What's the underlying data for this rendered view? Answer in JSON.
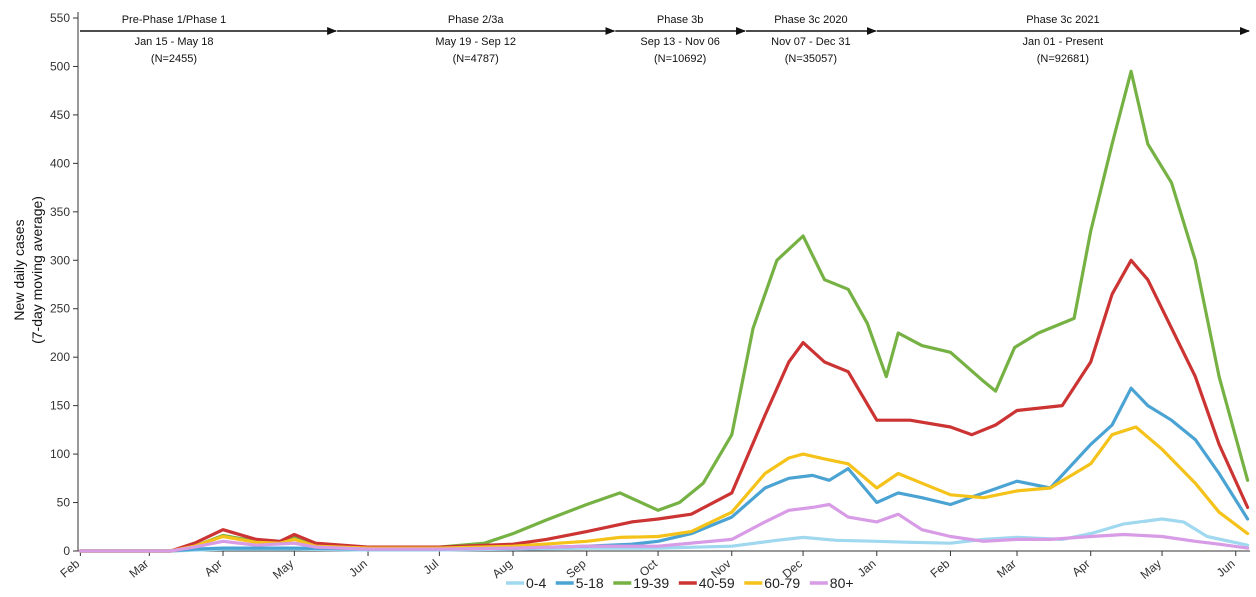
{
  "chart_data": {
    "type": "line",
    "ylabel": [
      "New daily cases",
      "(7-day moving average)"
    ],
    "ylim": [
      0,
      550
    ],
    "y_ticks": [
      0,
      50,
      100,
      150,
      200,
      250,
      300,
      350,
      400,
      450,
      500,
      550
    ],
    "x_ticks": [
      "Feb",
      "Mar",
      "Apr",
      "May",
      "Jun",
      "Jul",
      "Aug",
      "Sep",
      "Oct",
      "Nov",
      "Dec",
      "Jan",
      "Feb",
      "Mar",
      "Apr",
      "May",
      "Jun"
    ],
    "x_tick_dates": [
      "2020-02-01",
      "2020-03-01",
      "2020-04-01",
      "2020-05-01",
      "2020-06-01",
      "2020-07-01",
      "2020-08-01",
      "2020-09-01",
      "2020-10-01",
      "2020-11-01",
      "2020-12-01",
      "2021-01-01",
      "2021-02-01",
      "2021-03-01",
      "2021-04-01",
      "2021-05-01",
      "2021-06-01"
    ],
    "grid": false,
    "legend_position": "bottom",
    "phases": [
      {
        "title": "Pre-Phase 1/Phase 1",
        "dates": "Jan 15 - May 18",
        "n": "(N=2455)",
        "start": "2020-01-31",
        "end": "2020-05-19"
      },
      {
        "title": "Phase 2/3a",
        "dates": "May 19 - Sep 12",
        "n": "(N=4787)",
        "start": "2020-05-19",
        "end": "2020-09-13"
      },
      {
        "title": "Phase 3b",
        "dates": "Sep 13 - Nov 06",
        "n": "(N=10692)",
        "start": "2020-09-13",
        "end": "2020-11-07"
      },
      {
        "title": "Phase 3c 2020",
        "dates": "Nov 07 - Dec 31",
        "n": "(N=35057)",
        "start": "2020-11-07",
        "end": "2021-01-01"
      },
      {
        "title": "Phase 3c 2021",
        "dates": "Jan 01 - Present",
        "n": "(N=92681)",
        "start": "2021-01-01",
        "end": "2021-06-07"
      }
    ],
    "series": [
      {
        "name": "0-4",
        "color": "#9fd8ef",
        "points": [
          [
            "2020-02-01",
            0
          ],
          [
            "2020-03-10",
            0
          ],
          [
            "2020-04-01",
            2
          ],
          [
            "2020-05-01",
            2
          ],
          [
            "2020-06-01",
            1
          ],
          [
            "2020-07-01",
            1
          ],
          [
            "2020-08-01",
            2
          ],
          [
            "2020-09-01",
            3
          ],
          [
            "2020-10-01",
            3
          ],
          [
            "2020-11-01",
            5
          ],
          [
            "2020-11-20",
            11
          ],
          [
            "2020-12-01",
            14
          ],
          [
            "2020-12-15",
            11
          ],
          [
            "2021-01-01",
            10
          ],
          [
            "2021-01-15",
            9
          ],
          [
            "2021-02-01",
            8
          ],
          [
            "2021-02-15",
            12
          ],
          [
            "2021-03-01",
            14
          ],
          [
            "2021-03-20",
            12
          ],
          [
            "2021-04-01",
            18
          ],
          [
            "2021-04-15",
            28
          ],
          [
            "2021-05-01",
            33
          ],
          [
            "2021-05-10",
            30
          ],
          [
            "2021-05-20",
            15
          ],
          [
            "2021-06-06",
            6
          ]
        ]
      },
      {
        "name": "5-18",
        "color": "#4aa3d3",
        "points": [
          [
            "2020-02-01",
            0
          ],
          [
            "2020-03-10",
            0
          ],
          [
            "2020-03-20",
            2
          ],
          [
            "2020-04-01",
            3
          ],
          [
            "2020-05-01",
            3
          ],
          [
            "2020-06-01",
            2
          ],
          [
            "2020-07-01",
            2
          ],
          [
            "2020-08-01",
            3
          ],
          [
            "2020-09-01",
            5
          ],
          [
            "2020-09-20",
            7
          ],
          [
            "2020-10-01",
            10
          ],
          [
            "2020-10-15",
            18
          ],
          [
            "2020-11-01",
            35
          ],
          [
            "2020-11-15",
            65
          ],
          [
            "2020-11-25",
            75
          ],
          [
            "2020-12-05",
            78
          ],
          [
            "2020-12-12",
            73
          ],
          [
            "2020-12-20",
            85
          ],
          [
            "2021-01-01",
            50
          ],
          [
            "2021-01-10",
            60
          ],
          [
            "2021-01-20",
            55
          ],
          [
            "2021-02-01",
            48
          ],
          [
            "2021-02-15",
            60
          ],
          [
            "2021-03-01",
            72
          ],
          [
            "2021-03-15",
            65
          ],
          [
            "2021-04-01",
            110
          ],
          [
            "2021-04-10",
            130
          ],
          [
            "2021-04-18",
            168
          ],
          [
            "2021-04-25",
            150
          ],
          [
            "2021-05-05",
            135
          ],
          [
            "2021-05-15",
            115
          ],
          [
            "2021-05-25",
            80
          ],
          [
            "2021-06-06",
            33
          ]
        ]
      },
      {
        "name": "19-39",
        "color": "#76b143",
        "points": [
          [
            "2020-02-01",
            0
          ],
          [
            "2020-03-10",
            0
          ],
          [
            "2020-03-20",
            5
          ],
          [
            "2020-04-01",
            16
          ],
          [
            "2020-04-15",
            10
          ],
          [
            "2020-04-25",
            9
          ],
          [
            "2020-05-01",
            14
          ],
          [
            "2020-05-10",
            5
          ],
          [
            "2020-06-01",
            3
          ],
          [
            "2020-07-01",
            4
          ],
          [
            "2020-07-20",
            8
          ],
          [
            "2020-08-01",
            18
          ],
          [
            "2020-08-15",
            32
          ],
          [
            "2020-09-01",
            48
          ],
          [
            "2020-09-15",
            60
          ],
          [
            "2020-10-01",
            42
          ],
          [
            "2020-10-10",
            50
          ],
          [
            "2020-10-20",
            70
          ],
          [
            "2020-11-01",
            120
          ],
          [
            "2020-11-10",
            230
          ],
          [
            "2020-11-20",
            300
          ],
          [
            "2020-12-01",
            325
          ],
          [
            "2020-12-10",
            280
          ],
          [
            "2020-12-20",
            270
          ],
          [
            "2020-12-28",
            235
          ],
          [
            "2021-01-05",
            180
          ],
          [
            "2021-01-10",
            225
          ],
          [
            "2021-01-20",
            212
          ],
          [
            "2021-02-01",
            205
          ],
          [
            "2021-02-15",
            175
          ],
          [
            "2021-02-20",
            165
          ],
          [
            "2021-02-28",
            210
          ],
          [
            "2021-03-10",
            225
          ],
          [
            "2021-03-25",
            240
          ],
          [
            "2021-04-01",
            330
          ],
          [
            "2021-04-10",
            420
          ],
          [
            "2021-04-18",
            495
          ],
          [
            "2021-04-25",
            420
          ],
          [
            "2021-05-05",
            380
          ],
          [
            "2021-05-15",
            300
          ],
          [
            "2021-05-25",
            180
          ],
          [
            "2021-06-06",
            73
          ]
        ]
      },
      {
        "name": "40-59",
        "color": "#cc3333",
        "points": [
          [
            "2020-02-01",
            0
          ],
          [
            "2020-03-10",
            0
          ],
          [
            "2020-03-20",
            8
          ],
          [
            "2020-04-01",
            22
          ],
          [
            "2020-04-15",
            12
          ],
          [
            "2020-04-25",
            10
          ],
          [
            "2020-05-01",
            17
          ],
          [
            "2020-05-10",
            8
          ],
          [
            "2020-06-01",
            4
          ],
          [
            "2020-07-01",
            4
          ],
          [
            "2020-08-01",
            7
          ],
          [
            "2020-08-15",
            12
          ],
          [
            "2020-09-01",
            20
          ],
          [
            "2020-09-20",
            30
          ],
          [
            "2020-10-01",
            33
          ],
          [
            "2020-10-15",
            38
          ],
          [
            "2020-11-01",
            60
          ],
          [
            "2020-11-15",
            140
          ],
          [
            "2020-11-25",
            195
          ],
          [
            "2020-12-01",
            215
          ],
          [
            "2020-12-10",
            195
          ],
          [
            "2020-12-20",
            185
          ],
          [
            "2021-01-01",
            135
          ],
          [
            "2021-01-15",
            135
          ],
          [
            "2021-02-01",
            128
          ],
          [
            "2021-02-10",
            120
          ],
          [
            "2021-02-20",
            130
          ],
          [
            "2021-03-01",
            145
          ],
          [
            "2021-03-20",
            150
          ],
          [
            "2021-04-01",
            195
          ],
          [
            "2021-04-10",
            265
          ],
          [
            "2021-04-18",
            300
          ],
          [
            "2021-04-25",
            280
          ],
          [
            "2021-05-05",
            230
          ],
          [
            "2021-05-15",
            180
          ],
          [
            "2021-05-25",
            110
          ],
          [
            "2021-06-06",
            45
          ]
        ]
      },
      {
        "name": "60-79",
        "color": "#f5c21a",
        "points": [
          [
            "2020-02-01",
            0
          ],
          [
            "2020-03-10",
            0
          ],
          [
            "2020-03-20",
            5
          ],
          [
            "2020-04-01",
            15
          ],
          [
            "2020-04-15",
            9
          ],
          [
            "2020-04-25",
            8
          ],
          [
            "2020-05-01",
            12
          ],
          [
            "2020-05-10",
            5
          ],
          [
            "2020-06-01",
            3
          ],
          [
            "2020-07-01",
            3
          ],
          [
            "2020-08-01",
            5
          ],
          [
            "2020-09-01",
            10
          ],
          [
            "2020-09-15",
            14
          ],
          [
            "2020-10-01",
            15
          ],
          [
            "2020-10-15",
            20
          ],
          [
            "2020-11-01",
            40
          ],
          [
            "2020-11-15",
            80
          ],
          [
            "2020-11-25",
            96
          ],
          [
            "2020-12-01",
            100
          ],
          [
            "2020-12-10",
            95
          ],
          [
            "2020-12-20",
            90
          ],
          [
            "2021-01-01",
            65
          ],
          [
            "2021-01-10",
            80
          ],
          [
            "2021-01-20",
            70
          ],
          [
            "2021-02-01",
            58
          ],
          [
            "2021-02-15",
            55
          ],
          [
            "2021-03-01",
            62
          ],
          [
            "2021-03-15",
            65
          ],
          [
            "2021-04-01",
            90
          ],
          [
            "2021-04-10",
            120
          ],
          [
            "2021-04-20",
            128
          ],
          [
            "2021-05-01",
            105
          ],
          [
            "2021-05-15",
            70
          ],
          [
            "2021-05-25",
            40
          ],
          [
            "2021-06-06",
            18
          ]
        ]
      },
      {
        "name": "80+",
        "color": "#d89be6",
        "points": [
          [
            "2020-02-01",
            0
          ],
          [
            "2020-03-10",
            0
          ],
          [
            "2020-03-20",
            4
          ],
          [
            "2020-04-01",
            10
          ],
          [
            "2020-04-15",
            6
          ],
          [
            "2020-05-01",
            8
          ],
          [
            "2020-05-10",
            4
          ],
          [
            "2020-06-01",
            2
          ],
          [
            "2020-07-01",
            2
          ],
          [
            "2020-08-01",
            3
          ],
          [
            "2020-09-01",
            5
          ],
          [
            "2020-10-01",
            5
          ],
          [
            "2020-11-01",
            12
          ],
          [
            "2020-11-15",
            30
          ],
          [
            "2020-11-25",
            42
          ],
          [
            "2020-12-05",
            45
          ],
          [
            "2020-12-12",
            48
          ],
          [
            "2020-12-20",
            35
          ],
          [
            "2021-01-01",
            30
          ],
          [
            "2021-01-10",
            38
          ],
          [
            "2021-01-20",
            22
          ],
          [
            "2021-02-01",
            15
          ],
          [
            "2021-02-15",
            10
          ],
          [
            "2021-03-01",
            12
          ],
          [
            "2021-03-15",
            12
          ],
          [
            "2021-04-01",
            15
          ],
          [
            "2021-04-15",
            17
          ],
          [
            "2021-05-01",
            15
          ],
          [
            "2021-05-15",
            10
          ],
          [
            "2021-05-25",
            7
          ],
          [
            "2021-06-06",
            3
          ]
        ]
      }
    ]
  }
}
